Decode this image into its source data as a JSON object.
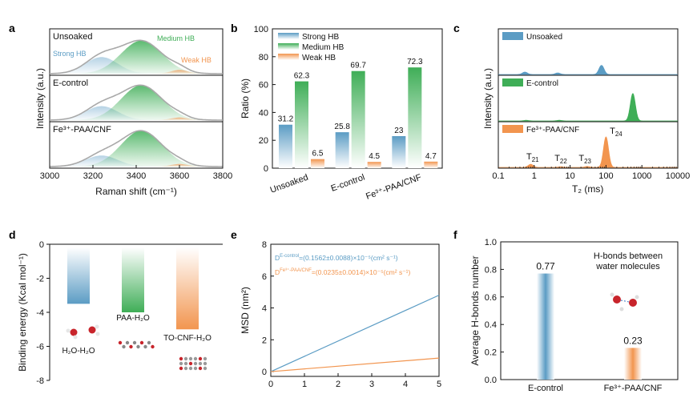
{
  "colors": {
    "strong": "#5b9cc4",
    "medium": "#3fae57",
    "weak": "#f2954f",
    "envelope": "#a9a9a9",
    "axis": "#111111"
  },
  "panels": {
    "a": "a",
    "b": "b",
    "c": "c",
    "d": "d",
    "e": "e",
    "f": "f"
  },
  "chart_data": [
    {
      "panel": "a",
      "type": "area",
      "xlabel": "Raman shift (cm⁻¹)",
      "ylabel": "Intensity (a.u.)",
      "xlim": [
        3000,
        3800
      ],
      "ticks_x": [
        "3000",
        "3200",
        "3400",
        "3600",
        "3800"
      ],
      "samples": [
        {
          "label": "Unsoaked",
          "strong": 0.45,
          "medium": 0.9,
          "weak": 0.1
        },
        {
          "label": "E-control",
          "strong": 0.38,
          "medium": 0.95,
          "weak": 0.07
        },
        {
          "label": "Fe³⁺-PAA/CNF",
          "strong": 0.3,
          "medium": 0.98,
          "weak": 0.07
        }
      ],
      "annotations": {
        "strong": "Strong HB",
        "medium": "Medium HB",
        "weak": "Weak HB"
      }
    },
    {
      "panel": "b",
      "type": "bar",
      "ylabel": "Ratio (%)",
      "ylim": [
        0,
        100
      ],
      "ticks_y": [
        "0",
        "20",
        "40",
        "60",
        "80",
        "100"
      ],
      "categories": [
        "Unsoaked",
        "E-control",
        "Fe³⁺-PAA/CNF"
      ],
      "series": [
        {
          "name": "Strong HB",
          "values": [
            31.2,
            25.8,
            23
          ],
          "labels": [
            "31.2",
            "25.8",
            "23"
          ]
        },
        {
          "name": "Medium HB",
          "values": [
            62.3,
            69.7,
            72.3
          ],
          "labels": [
            "62.3",
            "69.7",
            "72.3"
          ]
        },
        {
          "name": "Weak HB",
          "values": [
            6.5,
            4.5,
            4.7
          ],
          "labels": [
            "6.5",
            "4.5",
            "4.7"
          ]
        }
      ]
    },
    {
      "panel": "c",
      "type": "area",
      "xlabel": "T₂ (ms)",
      "ylabel": "Intensity (a.u.)",
      "xscale": "log",
      "xlim": [
        0.1,
        10000
      ],
      "ticks_x": [
        "0.1",
        "1",
        "10",
        "100",
        "1000",
        "10000"
      ],
      "series": [
        {
          "name": "Unsoaked",
          "peaks": [
            [
              0.55,
              0.08
            ],
            [
              4.5,
              0.05
            ],
            [
              75,
              0.3
            ]
          ]
        },
        {
          "name": "E-control",
          "peaks": [
            [
              0.6,
              0.02
            ],
            [
              5,
              0.02
            ],
            [
              560,
              0.9
            ]
          ]
        },
        {
          "name": "Fe³⁺-PAA/CNF",
          "peaks": [
            [
              0.8,
              0.1
            ],
            [
              5.5,
              0.02
            ],
            [
              30,
              0.03
            ],
            [
              100,
              1.0
            ]
          ]
        }
      ],
      "peak_labels": [
        {
          "text": "T",
          "sub": "21",
          "x": 0.9
        },
        {
          "text": "T",
          "sub": "22",
          "x": 5.5
        },
        {
          "text": "T",
          "sub": "23",
          "x": 26
        },
        {
          "text": "T",
          "sub": "24",
          "x": 190
        }
      ]
    },
    {
      "panel": "d",
      "type": "bar",
      "ylabel": "Binding energy (Kcal mol⁻¹)",
      "ylim": [
        -8,
        0
      ],
      "ticks_y": [
        "0",
        "-2",
        "-4",
        "-6",
        "-8"
      ],
      "categories": [
        "H₂O-H₂O",
        "PAA-H₂O",
        "TO-CNF-H₂O"
      ],
      "values": [
        -3.5,
        -4.0,
        -5.0
      ]
    },
    {
      "panel": "e",
      "type": "line",
      "xlabel": "t (ns)",
      "ylabel": "MSD (nm²)",
      "xlim": [
        0,
        5
      ],
      "ylim": [
        -0.3,
        8
      ],
      "ticks_x": [
        "0",
        "1",
        "2",
        "3",
        "4",
        "5"
      ],
      "ticks_y": [
        "0",
        "2",
        "4",
        "6",
        "8"
      ],
      "series": [
        {
          "name": "E-control",
          "x": [
            0,
            5
          ],
          "y": [
            0,
            4.8
          ]
        },
        {
          "name": "Fe³⁺-PAA/CNF",
          "x": [
            0,
            5
          ],
          "y": [
            0,
            0.85
          ]
        }
      ],
      "annotations": [
        {
          "sup": "E-control",
          "rest": "=(0.1562±0.0088)×10⁻⁵(cm² s⁻¹)"
        },
        {
          "sup": "Fe³⁺-PAA/CNF",
          "rest": "=(0.0235±0.0014)×10⁻⁵(cm² s⁻¹)"
        }
      ]
    },
    {
      "panel": "f",
      "type": "bar",
      "ylabel": "Average H-bonds number",
      "ylim": [
        0,
        1.0
      ],
      "ticks_y": [
        "0.0",
        "0.2",
        "0.4",
        "0.6",
        "0.8",
        "1.0"
      ],
      "categories": [
        "E-control",
        "Fe³⁺-PAA/CNF"
      ],
      "values": [
        0.77,
        0.23
      ],
      "labels": [
        "0.77",
        "0.23"
      ],
      "annotation": [
        "H-bonds between",
        "water molecules"
      ]
    }
  ]
}
